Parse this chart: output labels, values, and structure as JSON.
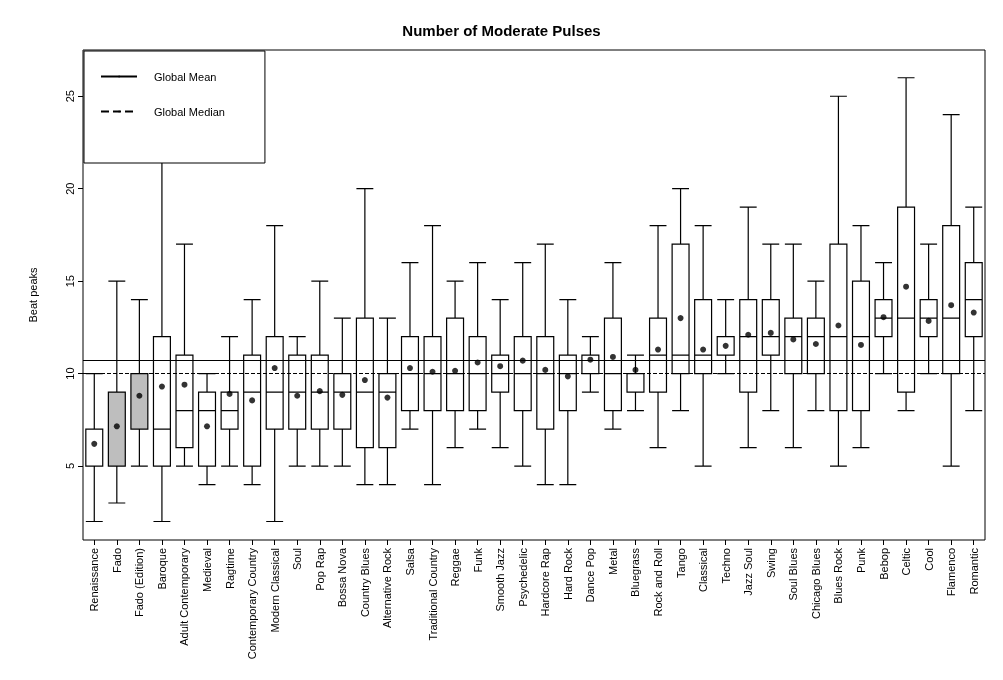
{
  "chart_data": {
    "type": "box",
    "title": "Number of Moderate Pulses",
    "ylabel": "Beat peaks",
    "categories": [
      "Renaissance",
      "Fado",
      "Fado (Edition)",
      "Baroque",
      "Adult Contemporary",
      "Medieval",
      "Ragtime",
      "Contemporary Country",
      "Modern Classical",
      "Soul",
      "Pop Rap",
      "Bossa Nova",
      "Country Blues",
      "Alternative Rock",
      "Salsa",
      "Traditional Country",
      "Reggae",
      "Funk",
      "Smooth Jazz",
      "Psychedelic",
      "Hardcore Rap",
      "Hard Rock",
      "Dance Pop",
      "Metal",
      "Bluegrass",
      "Rock and Roll",
      "Tango",
      "Classical",
      "Techno",
      "Jazz Soul",
      "Swing",
      "Soul Blues",
      "Chicago Blues",
      "Blues Rock",
      "Punk",
      "Bebop",
      "Celtic",
      "Cool",
      "Flamenco",
      "Romantic"
    ],
    "colors": [
      "#ffffff",
      "#bebebe",
      "#bebebe",
      "#ffffff",
      "#ffffff",
      "#ffffff",
      "#ffffff",
      "#ffffff",
      "#ffffff",
      "#ffffff",
      "#ffffff",
      "#ffffff",
      "#ffffff",
      "#ffffff",
      "#ffffff",
      "#ffffff",
      "#ffffff",
      "#ffffff",
      "#ffffff",
      "#ffffff",
      "#ffffff",
      "#ffffff",
      "#ffffff",
      "#ffffff",
      "#ffffff",
      "#ffffff",
      "#ffffff",
      "#ffffff",
      "#ffffff",
      "#ffffff",
      "#ffffff",
      "#ffffff",
      "#ffffff",
      "#ffffff",
      "#ffffff",
      "#ffffff",
      "#ffffff",
      "#ffffff",
      "#ffffff",
      "#ffffff"
    ],
    "boxes": [
      {
        "low": 2,
        "q1": 5,
        "median": 5,
        "q3": 7,
        "high": 10,
        "mean": 6.2
      },
      {
        "low": 3,
        "q1": 5,
        "median": 5,
        "q3": 9,
        "high": 15,
        "mean": 7.15
      },
      {
        "low": 5,
        "q1": 7,
        "median": 7,
        "q3": 10,
        "high": 14,
        "mean": 8.8
      },
      {
        "low": 2,
        "q1": 5,
        "median": 7,
        "q3": 12,
        "high": 24,
        "mean": 9.3
      },
      {
        "low": 5,
        "q1": 6,
        "median": 8,
        "q3": 11,
        "high": 17,
        "mean": 9.4
      },
      {
        "low": 4,
        "q1": 5,
        "median": 8,
        "q3": 9,
        "high": 10,
        "mean": 7.15
      },
      {
        "low": 5,
        "q1": 7,
        "median": 8,
        "q3": 9,
        "high": 12,
        "mean": 8.9
      },
      {
        "low": 4,
        "q1": 5,
        "median": 9,
        "q3": 11,
        "high": 14,
        "mean": 8.55
      },
      {
        "low": 2,
        "q1": 7,
        "median": 9,
        "q3": 12,
        "high": 18,
        "mean": 10.3
      },
      {
        "low": 5,
        "q1": 7,
        "median": 9,
        "q3": 11,
        "high": 12,
        "mean": 8.8
      },
      {
        "low": 5,
        "q1": 7,
        "median": 9,
        "q3": 11,
        "high": 15,
        "mean": 9.05
      },
      {
        "low": 5,
        "q1": 7,
        "median": 9,
        "q3": 10,
        "high": 13,
        "mean": 8.85
      },
      {
        "low": 4,
        "q1": 6,
        "median": 9,
        "q3": 13,
        "high": 20,
        "mean": 9.65
      },
      {
        "low": 4,
        "q1": 6,
        "median": 9,
        "q3": 10,
        "high": 13,
        "mean": 8.7
      },
      {
        "low": 7,
        "q1": 8,
        "median": 10,
        "q3": 12,
        "high": 16,
        "mean": 10.3
      },
      {
        "low": 4,
        "q1": 8,
        "median": 10,
        "q3": 12,
        "high": 18,
        "mean": 10.1
      },
      {
        "low": 6,
        "q1": 8,
        "median": 10,
        "q3": 13,
        "high": 15,
        "mean": 10.15
      },
      {
        "low": 7,
        "q1": 8,
        "median": 10,
        "q3": 12,
        "high": 16,
        "mean": 10.6
      },
      {
        "low": 6,
        "q1": 9,
        "median": 10,
        "q3": 11,
        "high": 14,
        "mean": 10.4
      },
      {
        "low": 5,
        "q1": 8,
        "median": 10,
        "q3": 12,
        "high": 16,
        "mean": 10.7
      },
      {
        "low": 4,
        "q1": 7,
        "median": 10,
        "q3": 12,
        "high": 17,
        "mean": 10.2
      },
      {
        "low": 4,
        "q1": 8,
        "median": 10,
        "q3": 11,
        "high": 14,
        "mean": 9.85
      },
      {
        "low": 9,
        "q1": 10,
        "median": 10,
        "q3": 11,
        "high": 12,
        "mean": 10.75
      },
      {
        "low": 7,
        "q1": 8,
        "median": 10,
        "q3": 13,
        "high": 16,
        "mean": 10.9
      },
      {
        "low": 8,
        "q1": 9,
        "median": 10,
        "q3": 10,
        "high": 11,
        "mean": 10.2
      },
      {
        "low": 6,
        "q1": 9,
        "median": 11,
        "q3": 13,
        "high": 18,
        "mean": 11.3
      },
      {
        "low": 8,
        "q1": 10,
        "median": 11,
        "q3": 17,
        "high": 20,
        "mean": 13
      },
      {
        "low": 5,
        "q1": 10,
        "median": 11,
        "q3": 14,
        "high": 18,
        "mean": 11.3
      },
      {
        "low": 10,
        "q1": 11,
        "median": 11,
        "q3": 12,
        "high": 14,
        "mean": 11.5
      },
      {
        "low": 6,
        "q1": 9,
        "median": 12,
        "q3": 14,
        "high": 19,
        "mean": 12.1
      },
      {
        "low": 8,
        "q1": 11,
        "median": 12,
        "q3": 14,
        "high": 17,
        "mean": 12.2
      },
      {
        "low": 6,
        "q1": 10,
        "median": 12,
        "q3": 13,
        "high": 17,
        "mean": 11.85
      },
      {
        "low": 8,
        "q1": 10,
        "median": 12,
        "q3": 13,
        "high": 15,
        "mean": 11.6
      },
      {
        "low": 5,
        "q1": 8,
        "median": 12,
        "q3": 17,
        "high": 25,
        "mean": 12.6
      },
      {
        "low": 6,
        "q1": 8,
        "median": 12,
        "q3": 15,
        "high": 18,
        "mean": 11.55
      },
      {
        "low": 10,
        "q1": 12,
        "median": 13,
        "q3": 14,
        "high": 16,
        "mean": 13.05
      },
      {
        "low": 8,
        "q1": 9,
        "median": 13,
        "q3": 19,
        "high": 26,
        "mean": 14.7
      },
      {
        "low": 10,
        "q1": 12,
        "median": 13,
        "q3": 14,
        "high": 17,
        "mean": 12.85
      },
      {
        "low": 5,
        "q1": 10,
        "median": 13,
        "q3": 18,
        "high": 24,
        "mean": 13.7
      },
      {
        "low": 8,
        "q1": 12,
        "median": 14,
        "q3": 16,
        "high": 19,
        "mean": 13.3
      }
    ],
    "ylim": [
      1,
      27.5
    ],
    "yticks": [
      5,
      10,
      15,
      20,
      25
    ],
    "grid": false,
    "legend": "top left",
    "ref_lines": [
      {
        "axis": "y",
        "value": 10.7,
        "label": "Global Mean",
        "color": "#000000",
        "line_style": "solid"
      },
      {
        "axis": "y",
        "value": 10,
        "label": "Global Median",
        "color": "#000000",
        "line_style": "dashed"
      }
    ]
  }
}
